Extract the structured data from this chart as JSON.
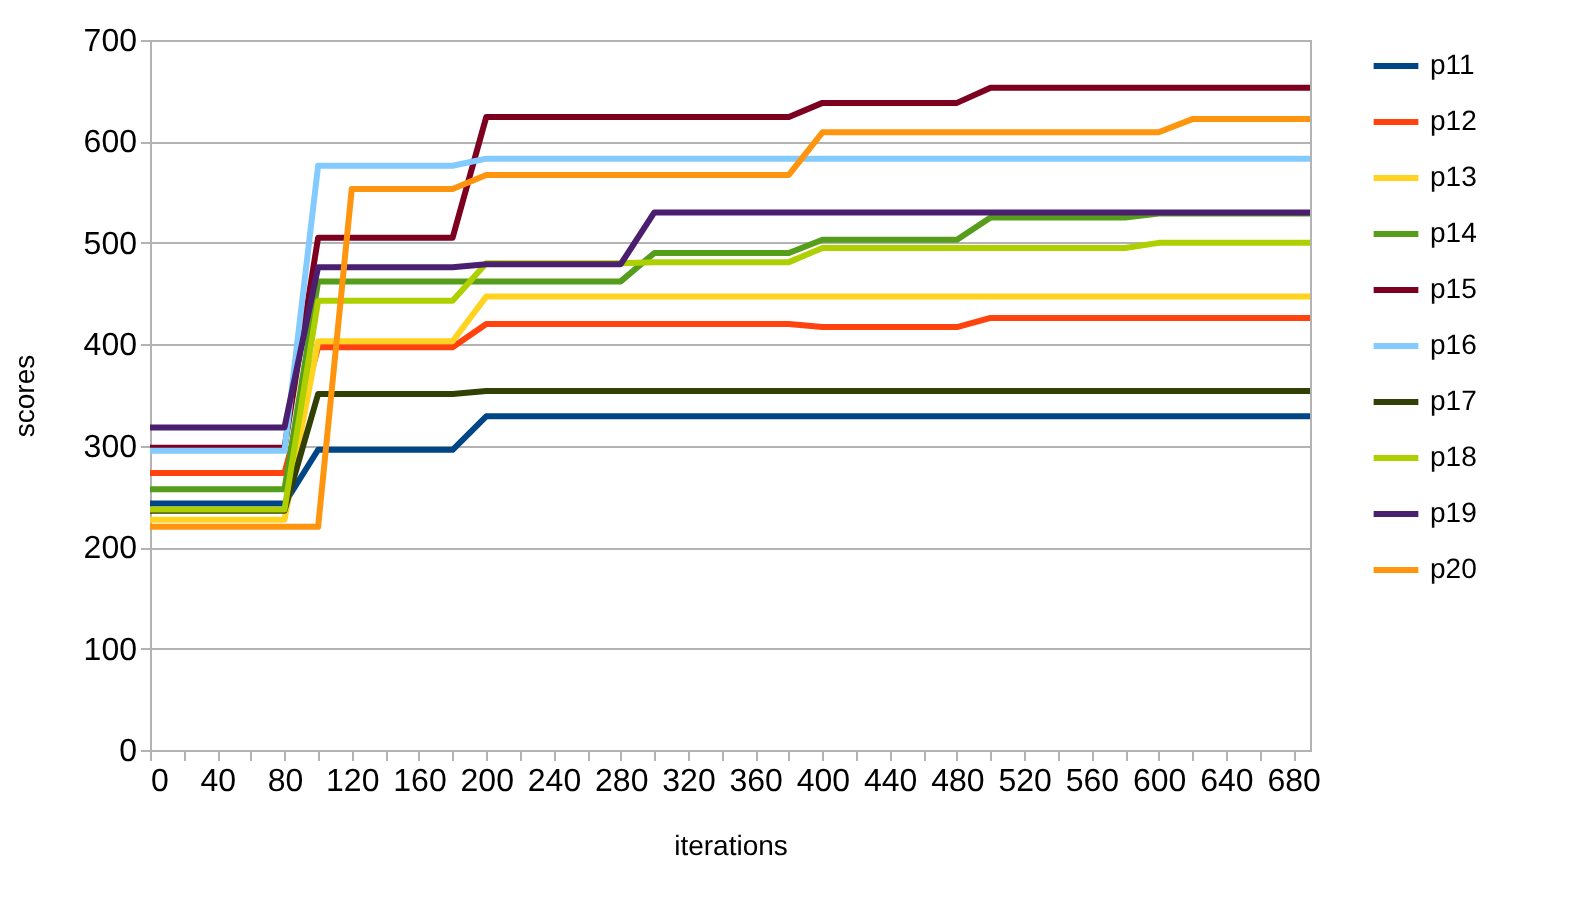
{
  "chart_data": {
    "type": "line",
    "xlabel": "iterations",
    "ylabel": "scores",
    "x": [
      0,
      80,
      100,
      120,
      180,
      200,
      280,
      300,
      380,
      400,
      480,
      500,
      580,
      600,
      620,
      690
    ],
    "xlim": [
      0,
      690
    ],
    "xticks": [
      0,
      {
        "value": 20,
        "label": null
      },
      40,
      {
        "value": 60,
        "label": null
      },
      80,
      {
        "value": 100,
        "label": null
      },
      120,
      {
        "value": 140,
        "label": null
      },
      160,
      {
        "value": 180,
        "label": null
      },
      200,
      {
        "value": 220,
        "label": null
      },
      240,
      {
        "value": 260,
        "label": null
      },
      280,
      {
        "value": 300,
        "label": null
      },
      320,
      {
        "value": 340,
        "label": null
      },
      360,
      {
        "value": 380,
        "label": null
      },
      400,
      {
        "value": 420,
        "label": null
      },
      440,
      {
        "value": 460,
        "label": null
      },
      480,
      {
        "value": 500,
        "label": null
      },
      520,
      {
        "value": 540,
        "label": null
      },
      560,
      {
        "value": 580,
        "label": null
      },
      600,
      {
        "value": 620,
        "label": null
      },
      640,
      {
        "value": 660,
        "label": null
      },
      680
    ],
    "ylim": [
      0,
      700
    ],
    "yticks": [
      0,
      100,
      200,
      300,
      400,
      500,
      600,
      700
    ],
    "grid": "y",
    "legend": "right",
    "series": [
      {
        "name": "p11",
        "color": "#004586",
        "values": [
          243,
          243,
          296,
          296,
          296,
          329,
          329,
          329,
          329,
          329,
          329,
          329,
          329,
          329,
          329,
          329
        ]
      },
      {
        "name": "p12",
        "color": "#ff420e",
        "values": [
          273,
          273,
          397,
          397,
          397,
          420,
          420,
          420,
          420,
          417,
          417,
          426,
          426,
          426,
          426,
          426
        ]
      },
      {
        "name": "p13",
        "color": "#ffd320",
        "values": [
          227,
          227,
          403,
          403,
          403,
          447,
          447,
          447,
          447,
          447,
          447,
          447,
          447,
          447,
          447,
          447
        ]
      },
      {
        "name": "p14",
        "color": "#579d1c",
        "values": [
          257,
          257,
          462,
          462,
          462,
          462,
          462,
          490,
          490,
          503,
          503,
          525,
          525,
          529,
          529,
          529
        ]
      },
      {
        "name": "p15",
        "color": "#7e0021",
        "values": [
          298,
          298,
          505,
          505,
          505,
          624,
          624,
          624,
          624,
          638,
          638,
          653,
          653,
          653,
          653,
          653
        ]
      },
      {
        "name": "p16",
        "color": "#83caff",
        "values": [
          295,
          295,
          576,
          576,
          576,
          583,
          583,
          583,
          583,
          583,
          583,
          583,
          583,
          583,
          583,
          583
        ]
      },
      {
        "name": "p17",
        "color": "#314004",
        "values": [
          236,
          236,
          351,
          351,
          351,
          354,
          354,
          354,
          354,
          354,
          354,
          354,
          354,
          354,
          354,
          354
        ]
      },
      {
        "name": "p18",
        "color": "#aecf00",
        "values": [
          237,
          237,
          443,
          443,
          443,
          480,
          480,
          481,
          481,
          495,
          495,
          495,
          495,
          500,
          500,
          500
        ]
      },
      {
        "name": "p19",
        "color": "#4b1f6f",
        "values": [
          318,
          318,
          476,
          476,
          476,
          479,
          479,
          530,
          530,
          530,
          530,
          530,
          530,
          530,
          530,
          530
        ]
      },
      {
        "name": "p20",
        "color": "#ff950e",
        "values": [
          220,
          220,
          220,
          553,
          553,
          567,
          567,
          567,
          567,
          609,
          609,
          609,
          609,
          609,
          622,
          622
        ]
      }
    ]
  }
}
